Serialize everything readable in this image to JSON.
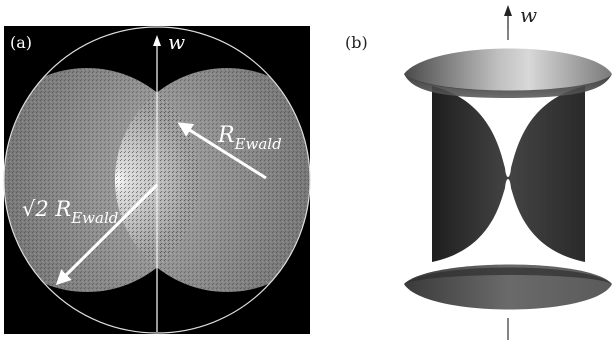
{
  "panel_a": {
    "label": "(a)",
    "axis_label": "w",
    "r_ewald_label": "R",
    "r_ewald_sub": "Ewald",
    "sqrt2_label": "√2 R",
    "sqrt2_sub": "Ewald"
  },
  "panel_b": {
    "label": "(b)",
    "axis_label": "w"
  },
  "colors": {
    "background_a": "#000000",
    "arrow": "#ffffff",
    "surface_dark": "#333333",
    "surface_light": "#d6d6d6"
  }
}
